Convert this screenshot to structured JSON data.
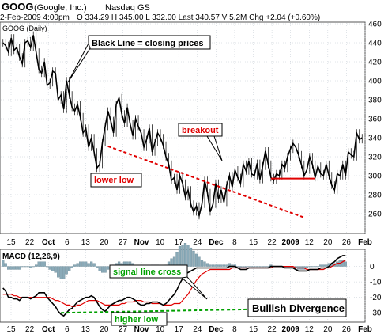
{
  "header": {
    "symbol": "GOOG",
    "company": "(Google, Inc.)",
    "exchange": "Nasdaq GS",
    "line2": "2-Feb-2009 4:00pm",
    "quote": "O 334.29  H 345.00  L 332.00  Last 340.57  V 5.2M  Chg +2.04 (+0.60%)"
  },
  "price_panel": {
    "label": "GOOG (Daily)",
    "annotations": {
      "note": "Black Line = closing prices",
      "breakout": "breakout",
      "lower_low": "lower low"
    }
  },
  "macd_panel": {
    "label": "MACD (12,26,9)",
    "annotations": {
      "signal_cross": "signal line cross",
      "higher_low": "higher low",
      "divergence": "Bullish Divergence"
    }
  },
  "colors": {
    "price_line": "#000000",
    "signal_line": "#e00000",
    "histogram": "#8aaab8",
    "annotation_red": "#e00000",
    "annotation_green": "#00a000",
    "panel_bg": "#ffffff",
    "frame_bg": "#d8e0e8",
    "grid": "#c0c8d0"
  },
  "chart_data": [
    {
      "type": "line",
      "title": "GOOG (Daily)",
      "y_axis_position": "right",
      "ylim": [
        240,
        460
      ],
      "yticks": [
        260,
        280,
        300,
        320,
        340,
        360,
        380,
        400,
        420,
        440,
        460
      ],
      "grid": true,
      "x_tick_labels": [
        "15",
        "22",
        "Oct",
        "6",
        "13",
        "20",
        "27",
        "Nov",
        "10",
        "17",
        "24",
        "Dec",
        "8",
        "15",
        "22",
        "2009",
        "12",
        "20",
        "26",
        "Feb"
      ],
      "series": [
        {
          "name": "Black Line = closing prices",
          "values": [
            440,
            437,
            430,
            445,
            432,
            435,
            425,
            418,
            440,
            442,
            435,
            448,
            430,
            412,
            408,
            420,
            395,
            398,
            410,
            408,
            380,
            385,
            370,
            400,
            385,
            372,
            368,
            375,
            362,
            345,
            350,
            330,
            340,
            325,
            308,
            312,
            335,
            352,
            368,
            358,
            345,
            375,
            382,
            365,
            355,
            372,
            355,
            342,
            360,
            352,
            345,
            330,
            338,
            350,
            325,
            335,
            345,
            340,
            332,
            320,
            312,
            295,
            298,
            285,
            300,
            292,
            278,
            285,
            270,
            262,
            268,
            258,
            270,
            295,
            282,
            262,
            270,
            292,
            275,
            285,
            272,
            290,
            300,
            288,
            306,
            298,
            292,
            312,
            305,
            315,
            302,
            300,
            313,
            296,
            310,
            326,
            312,
            298,
            295,
            302,
            300,
            312,
            308,
            320,
            328,
            334,
            330,
            322,
            312,
            300,
            306,
            320,
            312,
            298,
            310,
            302,
            300,
            312,
            300,
            290,
            285,
            302,
            300,
            312,
            300,
            325,
            322,
            320,
            345,
            338,
            340
          ]
        }
      ],
      "annotations": [
        {
          "text": "lower low",
          "from": {
            "x": 38,
            "y": 331
          },
          "to": {
            "x": 109,
            "y": 256
          }
        },
        {
          "text": "breakout",
          "segment": {
            "x_from": 97,
            "x_to": 113,
            "y": 297
          }
        }
      ]
    },
    {
      "type": "line",
      "title": "MACD (12,26,9)",
      "y_axis_position": "right",
      "ylim": [
        -35,
        10
      ],
      "yticks": [
        0,
        -10,
        -20,
        -30
      ],
      "grid": true,
      "series": [
        {
          "name": "MACD (12,26,9)",
          "type": "line",
          "values": [
            -14,
            -16,
            -20,
            -20,
            -21,
            -21,
            -22,
            -20,
            -20,
            -20,
            -21,
            -20,
            -19,
            -17,
            -17,
            -17,
            -20,
            -22,
            -24,
            -26,
            -29,
            -31,
            -32,
            -30,
            -28,
            -27,
            -25,
            -23,
            -22,
            -21,
            -20,
            -20,
            -19,
            -20,
            -23,
            -26,
            -28,
            -29,
            -27,
            -25,
            -24,
            -23,
            -22,
            -22,
            -21,
            -20,
            -20,
            -21,
            -22,
            -24,
            -25,
            -25,
            -24,
            -24,
            -23,
            -23,
            -23,
            -24,
            -25,
            -24,
            -22,
            -20,
            -18,
            -15,
            -11,
            -8,
            -5,
            -4,
            -3,
            -2,
            -1,
            -1,
            -1,
            -1,
            -1,
            -1,
            -1,
            -1,
            -1,
            -1,
            -1,
            -1,
            0,
            0,
            0,
            -1,
            -2,
            -2,
            -2,
            -1,
            -1,
            -1,
            -1,
            -1,
            -1,
            -1,
            -1,
            0,
            0,
            0,
            0,
            0,
            -1,
            -1,
            -1,
            -1,
            -2,
            -3,
            -3,
            -3,
            -3,
            -2,
            -2,
            -2,
            -2,
            -1,
            -1,
            -1,
            0,
            2,
            3,
            5,
            6,
            7,
            7
          ]
        },
        {
          "name": "signal",
          "type": "line",
          "values": [
            -18,
            -18,
            -18,
            -18,
            -19,
            -19,
            -20,
            -20,
            -20,
            -20,
            -20,
            -20,
            -20,
            -20,
            -20,
            -20,
            -20,
            -20,
            -21,
            -22,
            -22,
            -23,
            -24,
            -25,
            -25,
            -26,
            -26,
            -25,
            -25,
            -24,
            -23,
            -22,
            -22,
            -22,
            -22,
            -23,
            -24,
            -25,
            -25,
            -25,
            -25,
            -25,
            -25,
            -24,
            -24,
            -23,
            -23,
            -23,
            -22,
            -22,
            -22,
            -23,
            -23,
            -23,
            -24,
            -24,
            -24,
            -24,
            -25,
            -25,
            -25,
            -25,
            -24,
            -24,
            -24,
            -22,
            -20,
            -18,
            -15,
            -12,
            -9,
            -7,
            -5,
            -4,
            -3,
            -2,
            -2,
            -2,
            -2,
            -2,
            -2,
            -2,
            -2,
            -1,
            -1,
            -1,
            -1,
            -1,
            -1,
            -1,
            -1,
            -1,
            -1,
            -1,
            -1,
            -1,
            -1,
            -1,
            0,
            0,
            0,
            0,
            0,
            0,
            0,
            0,
            -1,
            -1,
            -1,
            -1,
            -2,
            -2,
            -2,
            -2,
            -2,
            -2,
            -2,
            -1,
            -1,
            0,
            1,
            2,
            2,
            3,
            4
          ]
        },
        {
          "name": "histogram",
          "type": "bar",
          "values": [
            4,
            2,
            -2,
            -2,
            -2,
            -2,
            -2,
            0,
            0,
            0,
            -1,
            0,
            1,
            3,
            3,
            3,
            0,
            -2,
            -3,
            -4,
            -7,
            -8,
            -8,
            -5,
            -3,
            -1,
            1,
            2,
            3,
            3,
            3,
            2,
            3,
            2,
            -1,
            -3,
            -4,
            -4,
            -2,
            0,
            1,
            2,
            3,
            2,
            3,
            3,
            3,
            2,
            0,
            -2,
            -3,
            -2,
            -1,
            -1,
            1,
            1,
            1,
            0,
            0,
            1,
            3,
            5,
            6,
            9,
            13,
            14,
            15,
            14,
            12,
            10,
            8,
            6,
            4,
            3,
            2,
            1,
            1,
            1,
            1,
            1,
            1,
            1,
            2,
            1,
            1,
            0,
            -1,
            -1,
            -1,
            0,
            0,
            0,
            0,
            0,
            0,
            0,
            0,
            1,
            0,
            0,
            0,
            0,
            -1,
            -1,
            -1,
            -1,
            -1,
            -2,
            -2,
            -2,
            -1,
            0,
            0,
            0,
            0,
            1,
            1,
            1,
            2,
            2,
            2,
            3,
            4,
            4,
            3
          ]
        }
      ],
      "annotations": [
        {
          "text": "higher low",
          "from": {
            "x": 21,
            "y": -30
          },
          "to": {
            "x": 112,
            "y": -27
          }
        },
        {
          "text": "signal line cross",
          "at_x": 112
        }
      ]
    }
  ]
}
